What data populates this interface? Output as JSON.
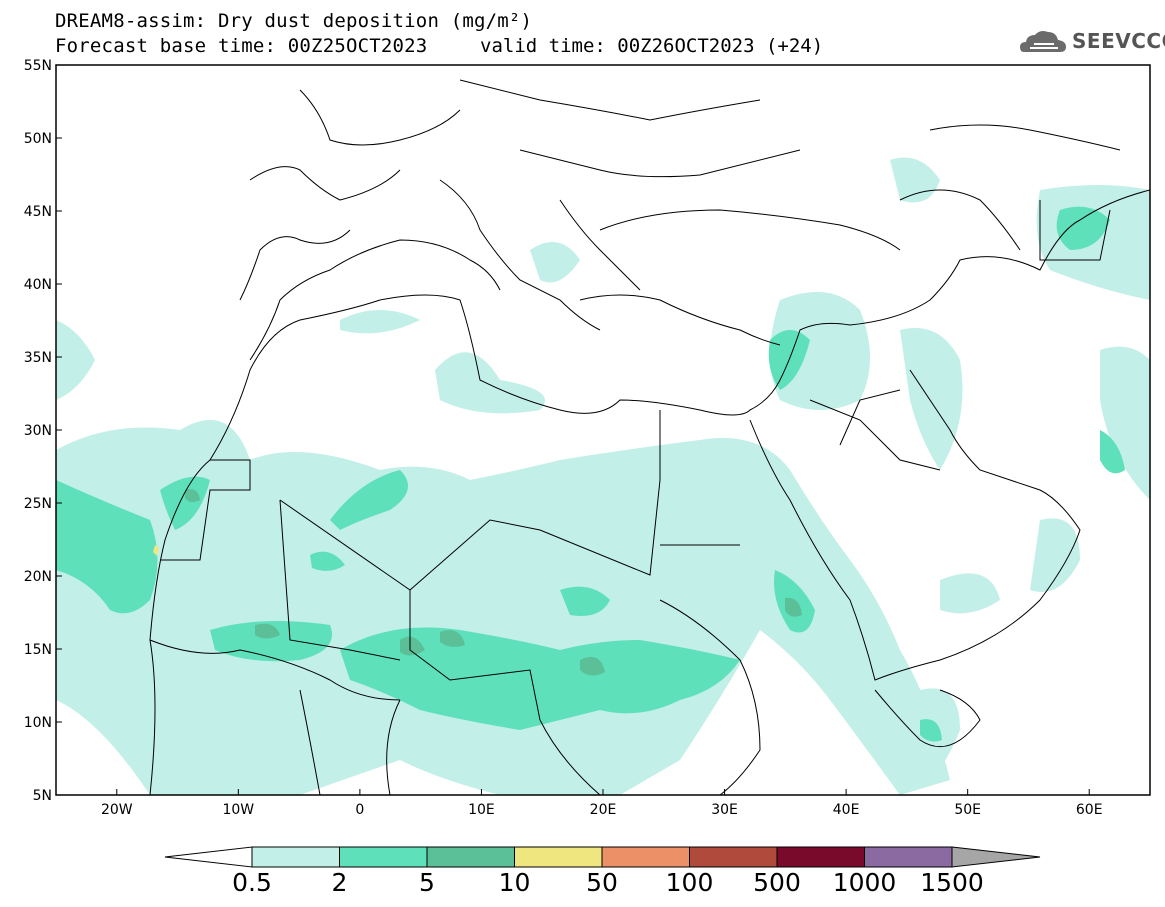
{
  "header": {
    "title_line1": "DREAM8-assim: Dry dust deposition (mg/m²)",
    "title_line2": "Forecast base time: 00Z25OCT2023",
    "valid_time": "valid time: 00Z26OCT2023 (+24)",
    "logo_text": "SEEVCCC"
  },
  "map": {
    "lon_range": [
      -25,
      65
    ],
    "lat_range": [
      5,
      55
    ],
    "lon_ticks": [
      "20W",
      "10W",
      "0",
      "10E",
      "20E",
      "30E",
      "40E",
      "50E",
      "60E"
    ],
    "lat_ticks": [
      "55N",
      "50N",
      "45N",
      "40N",
      "35N",
      "30N",
      "25N",
      "20N",
      "15N",
      "10N",
      "5N"
    ]
  },
  "colorbar": {
    "labels": [
      "0.5",
      "2",
      "5",
      "10",
      "50",
      "100",
      "500",
      "1000",
      "1500"
    ],
    "colors": [
      "#c2efe8",
      "#5ee0bb",
      "#5bbf98",
      "#f0e680",
      "#ec9068",
      "#b04a3c",
      "#7a0a2c",
      "#8a6aa0"
    ],
    "over_color": "#a6a6a6",
    "under_color": "#ffffff"
  },
  "colors": {
    "light": "#c2efe8",
    "medium": "#5ee0bb",
    "dark": "#5bbf98"
  }
}
